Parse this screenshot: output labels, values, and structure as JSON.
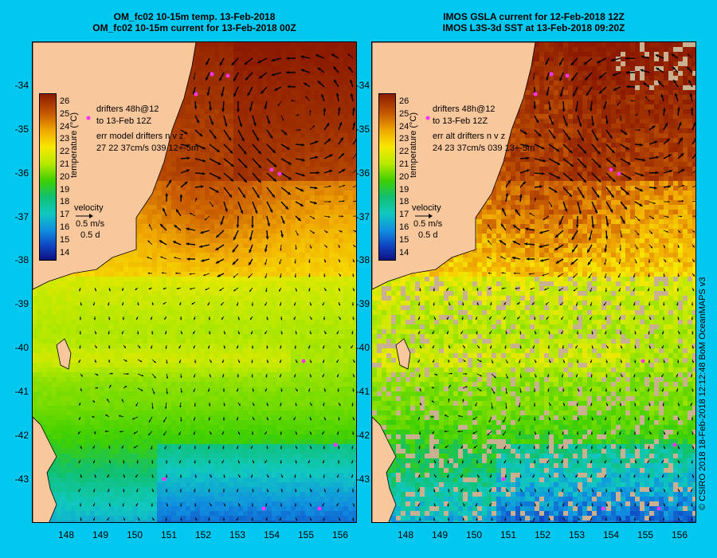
{
  "titles": {
    "left_line1": "OM_fc02 10-15m temp. 13-Feb-2018",
    "left_line2": "OM_fc02 10-15m current for 13-Feb-2018 00Z",
    "right_line1": "IMOS GSLA current for 12-Feb-2018 12Z",
    "right_line2": "IMOS L3S-3d SST at 13-Feb-2018 09:20Z"
  },
  "colorbar": {
    "title": "temperature (°C)",
    "labels": [
      "26",
      "25",
      "24",
      "23",
      "22",
      "21",
      "20",
      "19",
      "18",
      "17",
      "16",
      "15",
      "14"
    ]
  },
  "annotations_left": {
    "drifters1": "drifters 48h@12",
    "drifters2": "to 13-Feb 12Z",
    "err1": "err model drifters n v z",
    "err2": "27 22 37cm/s 039 12+-5m",
    "velocity": "velocity",
    "speed": "0.5 m/s",
    "duration": "0.5 d"
  },
  "annotations_right": {
    "drifters1": "drifters 48h@12",
    "drifters2": "to 13-Feb 12Z",
    "err1": "err alt drifters n v z",
    "err2": "24 23 37cm/s 039 13+-5m",
    "velocity": "velocity",
    "speed": "0.5 m/s",
    "duration": "0.5 d"
  },
  "y_ticks": [
    "-34",
    "-35",
    "-36",
    "-37",
    "-38",
    "-39",
    "-40",
    "-41",
    "-42",
    "-43"
  ],
  "x_ticks": [
    "148",
    "149",
    "150",
    "151",
    "152",
    "153",
    "154",
    "155",
    "156"
  ],
  "credit": "© CSIRO 2018   18-Feb-2018 12:12:48 BoM OceanMAPS v3",
  "colors": {
    "land": "#f9c79c",
    "background": "#00c8f0",
    "gap": "#c8b090",
    "drifter": "#ff33ff"
  }
}
